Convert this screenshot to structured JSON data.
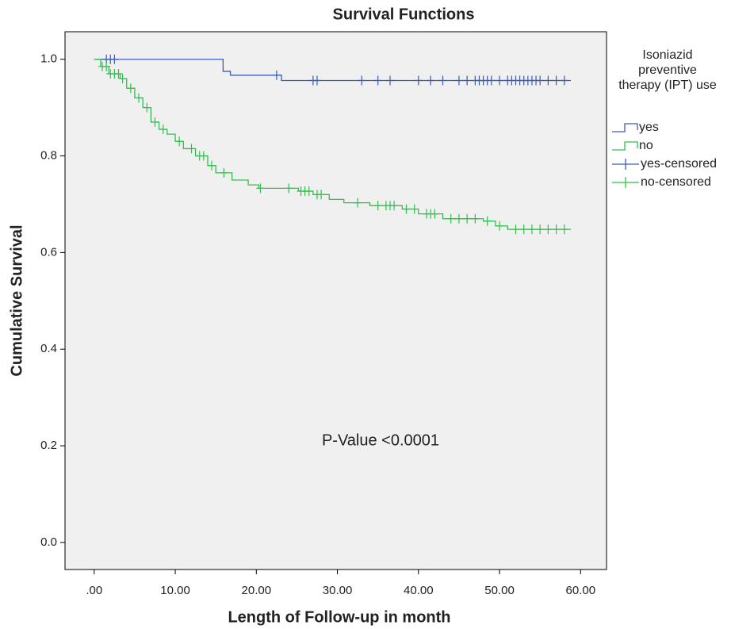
{
  "chart_data": {
    "type": "step",
    "title": "Survival Functions",
    "xlabel": "Length of Follow-up in month",
    "ylabel": "Cumulative Survival",
    "annotation": "P-Value <0.0001",
    "legend_title": "Isoniazid preventive therapy (IPT) use",
    "legend_position": "right",
    "xlim": [
      -3.6,
      63.2
    ],
    "ylim": [
      -0.056,
      1.057
    ],
    "xticks": [
      {
        "value": 0,
        "label": ".00"
      },
      {
        "value": 10,
        "label": "10.00"
      },
      {
        "value": 20,
        "label": "20.00"
      },
      {
        "value": 30,
        "label": "30.00"
      },
      {
        "value": 40,
        "label": "40.00"
      },
      {
        "value": 50,
        "label": "50.00"
      },
      {
        "value": 60,
        "label": "60.00"
      }
    ],
    "yticks": [
      {
        "value": 0,
        "label": "0.0"
      },
      0.2,
      0.4,
      0.6,
      0.8,
      {
        "value": 1,
        "label": "1.0"
      }
    ],
    "series": [
      {
        "name": "yes",
        "color": "#3b5cb5",
        "marker": "step",
        "x": [
          0,
          15.9,
          16.8,
          23.1,
          58.8
        ],
        "values": [
          1.0,
          0.975,
          0.967,
          0.956,
          0.956
        ]
      },
      {
        "name": "no",
        "color": "#2fc24a",
        "marker": "step",
        "x": [
          0,
          0.8,
          1.8,
          3.2,
          4,
          5,
          6,
          7,
          8,
          9,
          10,
          11,
          12.5,
          14,
          15,
          17,
          19,
          20.3,
          25.2,
          27,
          29,
          30.8,
          34,
          38,
          40,
          43,
          48,
          49.5,
          51,
          58.8
        ],
        "values": [
          1.0,
          0.985,
          0.97,
          0.96,
          0.94,
          0.92,
          0.9,
          0.87,
          0.855,
          0.845,
          0.83,
          0.815,
          0.8,
          0.78,
          0.765,
          0.75,
          0.74,
          0.733,
          0.727,
          0.72,
          0.71,
          0.703,
          0.697,
          0.69,
          0.68,
          0.67,
          0.665,
          0.655,
          0.648,
          0.648
        ]
      },
      {
        "name": "yes-censored",
        "color": "#3b5cb5",
        "marker": "plus",
        "x": [
          1.5,
          2,
          2.5,
          22.5,
          27,
          27.5,
          33,
          35,
          36.5,
          40,
          41.5,
          43,
          45,
          46,
          47,
          47.5,
          48,
          48.5,
          49,
          50,
          51,
          51.5,
          52,
          52.5,
          53,
          53.5,
          54,
          54.5,
          55,
          56,
          57,
          58
        ],
        "values": [
          1.0,
          1.0,
          1.0,
          0.967,
          0.956,
          0.956,
          0.956,
          0.956,
          0.956,
          0.956,
          0.956,
          0.956,
          0.956,
          0.956,
          0.956,
          0.956,
          0.956,
          0.956,
          0.956,
          0.956,
          0.956,
          0.956,
          0.956,
          0.956,
          0.956,
          0.956,
          0.956,
          0.956,
          0.956,
          0.956,
          0.956,
          0.956
        ]
      },
      {
        "name": "no-censored",
        "color": "#2fc24a",
        "marker": "plus",
        "x": [
          1,
          1.5,
          2,
          2.5,
          3,
          3.5,
          4.5,
          5.5,
          6.5,
          7.5,
          8.5,
          10.5,
          12,
          13,
          13.5,
          14.5,
          16,
          20.5,
          24,
          25.5,
          26,
          26.5,
          27.5,
          28,
          32.5,
          35,
          36,
          36.5,
          37,
          38.5,
          39.5,
          41,
          41.5,
          42,
          44,
          45,
          46,
          47,
          48.5,
          50,
          52,
          53,
          54,
          55,
          56,
          57,
          58
        ],
        "values": [
          0.985,
          0.985,
          0.97,
          0.97,
          0.97,
          0.96,
          0.94,
          0.92,
          0.9,
          0.87,
          0.855,
          0.83,
          0.815,
          0.8,
          0.8,
          0.78,
          0.765,
          0.733,
          0.733,
          0.727,
          0.727,
          0.727,
          0.72,
          0.72,
          0.703,
          0.697,
          0.697,
          0.697,
          0.697,
          0.69,
          0.69,
          0.68,
          0.68,
          0.68,
          0.67,
          0.67,
          0.67,
          0.67,
          0.665,
          0.655,
          0.648,
          0.648,
          0.648,
          0.648,
          0.648,
          0.648,
          0.648
        ]
      }
    ]
  }
}
